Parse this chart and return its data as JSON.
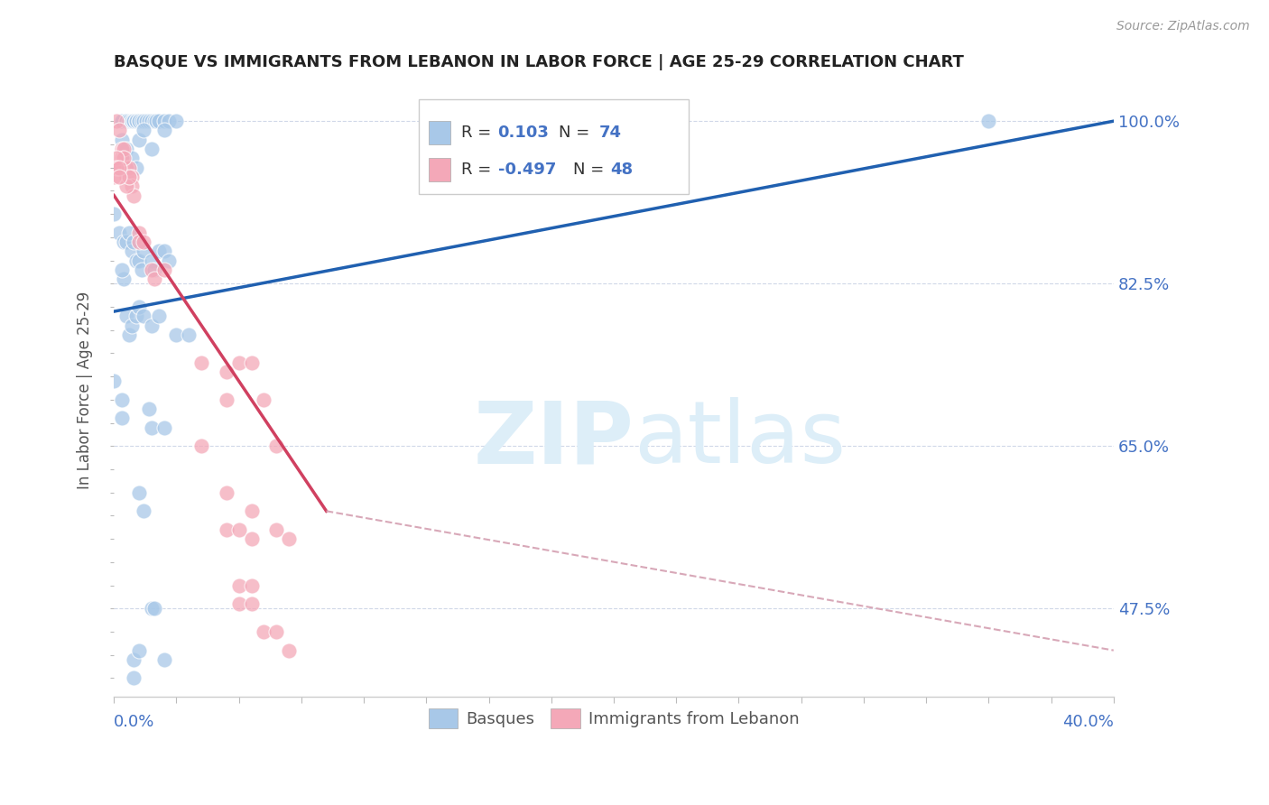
{
  "title": "BASQUE VS IMMIGRANTS FROM LEBANON IN LABOR FORCE | AGE 25-29 CORRELATION CHART",
  "source": "Source: ZipAtlas.com",
  "ylabel": "In Labor Force | Age 25-29",
  "xlim": [
    0.0,
    40.0
  ],
  "ylim": [
    0.38,
    1.04
  ],
  "yright_ticks": [
    1.0,
    0.825,
    0.65,
    0.475
  ],
  "yright_labels": [
    "100.0%",
    "82.5%",
    "65.0%",
    "47.5%"
  ],
  "blue_color": "#a8c8e8",
  "pink_color": "#f4a8b8",
  "trend_blue_color": "#2060b0",
  "trend_pink_color": "#d04060",
  "trend_pink_dash_color": "#d8a8b8",
  "legend_box_color": "#cccccc",
  "axis_label_color": "#4472c4",
  "title_color": "#222222",
  "source_color": "#999999",
  "grid_color": "#d0d8e8",
  "watermark_color": "#ddeef8",
  "blue_trend": [
    0.0,
    0.795,
    40.0,
    1.0
  ],
  "pink_trend_solid": [
    0.0,
    0.92,
    8.5,
    0.58
  ],
  "pink_trend_dash": [
    8.5,
    0.58,
    40.0,
    0.43
  ],
  "blue_scatter": [
    [
      0.3,
      1.0
    ],
    [
      0.3,
      1.0
    ],
    [
      0.5,
      1.0
    ],
    [
      0.5,
      1.0
    ],
    [
      0.5,
      1.0
    ],
    [
      0.6,
      1.0
    ],
    [
      0.7,
      1.0
    ],
    [
      0.7,
      1.0
    ],
    [
      0.8,
      1.0
    ],
    [
      0.8,
      1.0
    ],
    [
      0.9,
      1.0
    ],
    [
      0.9,
      1.0
    ],
    [
      1.0,
      1.0
    ],
    [
      1.0,
      1.0
    ],
    [
      1.1,
      1.0
    ],
    [
      1.2,
      1.0
    ],
    [
      1.3,
      1.0
    ],
    [
      1.4,
      1.0
    ],
    [
      1.5,
      1.0
    ],
    [
      1.6,
      1.0
    ],
    [
      1.7,
      1.0
    ],
    [
      1.8,
      1.0
    ],
    [
      2.0,
      1.0
    ],
    [
      2.2,
      1.0
    ],
    [
      2.5,
      1.0
    ],
    [
      0.3,
      0.98
    ],
    [
      0.5,
      0.97
    ],
    [
      0.7,
      0.96
    ],
    [
      0.9,
      0.95
    ],
    [
      1.0,
      0.98
    ],
    [
      1.2,
      0.99
    ],
    [
      1.5,
      0.97
    ],
    [
      2.0,
      0.99
    ],
    [
      0.0,
      0.9
    ],
    [
      0.2,
      0.88
    ],
    [
      0.4,
      0.87
    ],
    [
      0.5,
      0.87
    ],
    [
      0.6,
      0.88
    ],
    [
      0.7,
      0.86
    ],
    [
      0.8,
      0.87
    ],
    [
      0.9,
      0.85
    ],
    [
      1.0,
      0.85
    ],
    [
      1.1,
      0.84
    ],
    [
      1.2,
      0.86
    ],
    [
      1.5,
      0.85
    ],
    [
      1.6,
      0.84
    ],
    [
      1.8,
      0.86
    ],
    [
      2.0,
      0.86
    ],
    [
      2.2,
      0.85
    ],
    [
      0.4,
      0.83
    ],
    [
      0.3,
      0.84
    ],
    [
      0.5,
      0.79
    ],
    [
      0.6,
      0.77
    ],
    [
      0.7,
      0.78
    ],
    [
      0.9,
      0.79
    ],
    [
      1.0,
      0.8
    ],
    [
      1.2,
      0.79
    ],
    [
      1.5,
      0.78
    ],
    [
      1.8,
      0.79
    ],
    [
      2.5,
      0.77
    ],
    [
      3.0,
      0.77
    ],
    [
      0.0,
      0.72
    ],
    [
      0.3,
      0.7
    ],
    [
      1.5,
      0.67
    ],
    [
      2.0,
      0.67
    ],
    [
      0.3,
      0.68
    ],
    [
      1.4,
      0.69
    ],
    [
      1.0,
      0.6
    ],
    [
      1.2,
      0.58
    ],
    [
      1.5,
      0.475
    ],
    [
      1.6,
      0.475
    ],
    [
      0.8,
      0.42
    ],
    [
      1.0,
      0.43
    ],
    [
      2.0,
      0.42
    ],
    [
      0.8,
      0.4
    ],
    [
      35.0,
      1.0
    ]
  ],
  "pink_scatter": [
    [
      0.1,
      1.0
    ],
    [
      0.2,
      0.99
    ],
    [
      0.3,
      0.97
    ],
    [
      0.3,
      0.96
    ],
    [
      0.4,
      0.97
    ],
    [
      0.5,
      0.95
    ],
    [
      0.5,
      0.94
    ],
    [
      0.6,
      0.95
    ],
    [
      0.7,
      0.94
    ],
    [
      0.7,
      0.93
    ],
    [
      0.8,
      0.92
    ],
    [
      0.4,
      0.96
    ],
    [
      0.5,
      0.93
    ],
    [
      0.6,
      0.94
    ],
    [
      0.0,
      0.95
    ],
    [
      0.0,
      0.94
    ],
    [
      0.1,
      0.96
    ],
    [
      0.1,
      0.95
    ],
    [
      0.2,
      0.95
    ],
    [
      0.2,
      0.94
    ],
    [
      1.0,
      0.88
    ],
    [
      1.0,
      0.87
    ],
    [
      1.2,
      0.87
    ],
    [
      1.5,
      0.84
    ],
    [
      1.6,
      0.83
    ],
    [
      2.0,
      0.84
    ],
    [
      5.0,
      0.74
    ],
    [
      5.5,
      0.74
    ],
    [
      4.5,
      0.73
    ],
    [
      3.5,
      0.74
    ],
    [
      4.5,
      0.7
    ],
    [
      6.0,
      0.7
    ],
    [
      3.5,
      0.65
    ],
    [
      6.5,
      0.65
    ],
    [
      4.5,
      0.6
    ],
    [
      5.5,
      0.58
    ],
    [
      4.5,
      0.56
    ],
    [
      5.0,
      0.56
    ],
    [
      5.5,
      0.55
    ],
    [
      6.5,
      0.56
    ],
    [
      7.0,
      0.55
    ],
    [
      5.0,
      0.5
    ],
    [
      5.5,
      0.5
    ],
    [
      5.0,
      0.48
    ],
    [
      5.5,
      0.48
    ],
    [
      6.0,
      0.45
    ],
    [
      6.5,
      0.45
    ],
    [
      7.0,
      0.43
    ]
  ]
}
